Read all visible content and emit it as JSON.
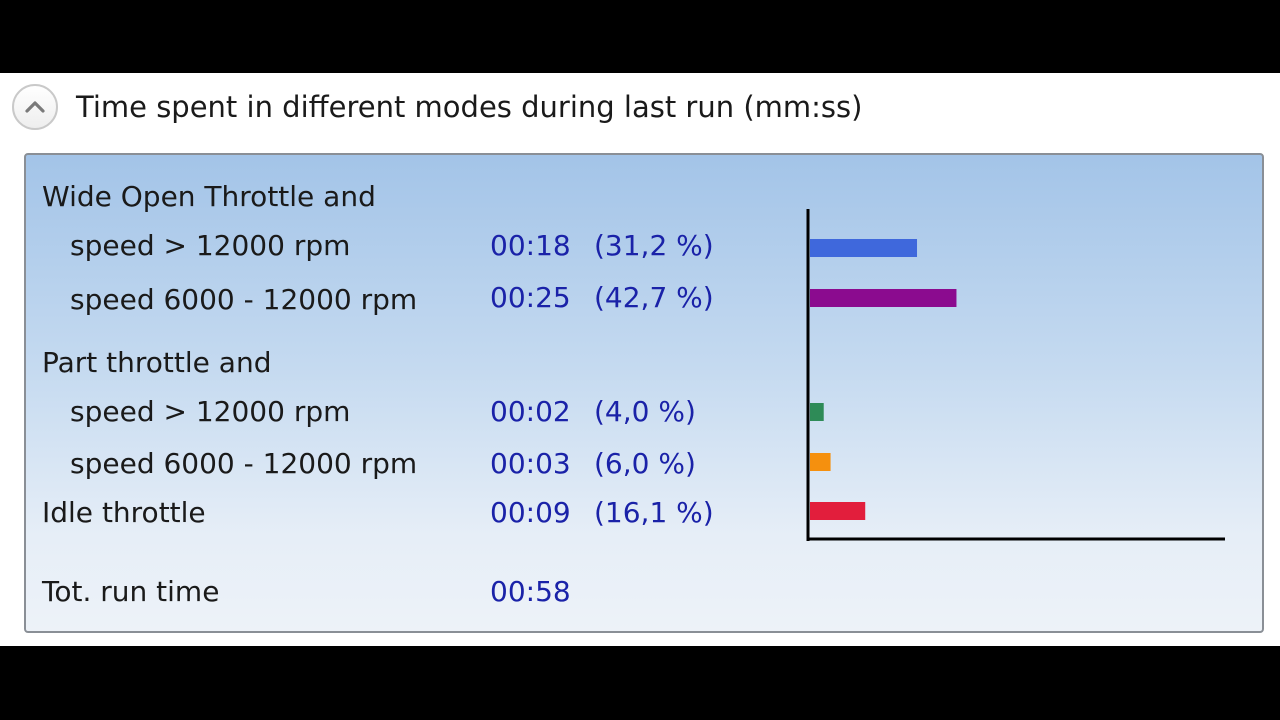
{
  "header": {
    "title": "Time spent in different modes during last run (mm:ss)"
  },
  "groups": {
    "wot_label": "Wide Open Throttle and",
    "part_label": "Part throttle and"
  },
  "rows": [
    {
      "label": "speed > 12000 rpm",
      "time": "00:18",
      "percent": "(31,2 %)"
    },
    {
      "label": "speed 6000 - 12000 rpm",
      "time": "00:25",
      "percent": "(42,7 %)"
    },
    {
      "label": "speed > 12000 rpm",
      "time": "00:02",
      "percent": "(4,0 %)"
    },
    {
      "label": "speed 6000 - 12000 rpm",
      "time": "00:03",
      "percent": "(6,0 %)"
    },
    {
      "label": "Idle throttle",
      "time": "00:09",
      "percent": "(16,1 %)"
    }
  ],
  "total": {
    "label": "Tot. run time",
    "time": "00:58"
  },
  "chart_data": {
    "type": "bar",
    "orientation": "horizontal",
    "categories": [
      "WOT speed > 12000 rpm",
      "WOT speed 6000 - 12000 rpm",
      "Part speed > 12000 rpm",
      "Part speed 6000 - 12000 rpm",
      "Idle throttle"
    ],
    "values": [
      31.2,
      42.7,
      4.0,
      6.0,
      16.1
    ],
    "colors": [
      "#3f68dc",
      "#8b0b8f",
      "#2e8b57",
      "#f5900e",
      "#e21e3c"
    ],
    "xlim": [
      0,
      120
    ]
  },
  "colors": {
    "value_text": "#1a22a8",
    "box_top": "#a3c4e8",
    "box_bottom": "#edf2f8"
  }
}
